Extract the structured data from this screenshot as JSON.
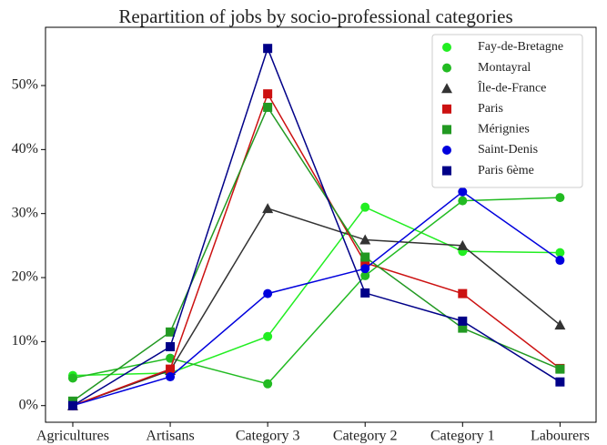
{
  "chart_data": {
    "type": "line",
    "title": "Repartition of jobs by socio-professional categories",
    "categories": [
      "Agricultures",
      "Artisans",
      "Category 3",
      "Category 2",
      "Category 1",
      "Labourers"
    ],
    "series": [
      {
        "name": "Fay-de-Bretagne",
        "color": "#22ee22",
        "marker": "circle",
        "values": [
          4.7,
          5.1,
          10.8,
          31.0,
          24.1,
          23.9
        ]
      },
      {
        "name": "Montayral",
        "color": "#22bb22",
        "marker": "circle",
        "values": [
          4.3,
          7.4,
          3.4,
          20.3,
          32.0,
          32.5
        ]
      },
      {
        "name": "Île-de-France",
        "color": "#333333",
        "marker": "triangle",
        "values": [
          0,
          5.5,
          30.8,
          25.9,
          25.0,
          12.6
        ]
      },
      {
        "name": "Paris",
        "color": "#cc1111",
        "marker": "square",
        "values": [
          0,
          5.7,
          48.7,
          22.3,
          17.5,
          5.8
        ]
      },
      {
        "name": "Mérignies",
        "color": "#229922",
        "marker": "square",
        "values": [
          0.7,
          11.5,
          46.6,
          23.2,
          12.1,
          5.7
        ]
      },
      {
        "name": "Saint-Denis",
        "color": "#0000dd",
        "marker": "circle",
        "values": [
          0,
          4.5,
          17.5,
          21.4,
          33.4,
          22.7
        ]
      },
      {
        "name": "Paris 6ème",
        "color": "#000088",
        "marker": "square",
        "values": [
          0,
          9.2,
          55.8,
          17.6,
          13.2,
          3.7
        ]
      }
    ],
    "xlim": [
      -0.28,
      5.37
    ],
    "ylim": [
      -2.6,
      59.1
    ],
    "yticks": [
      {
        "value": 0,
        "label": "0%"
      },
      {
        "value": 10,
        "label": "10%"
      },
      {
        "value": 20,
        "label": "20%"
      },
      {
        "value": 30,
        "label": "30%"
      },
      {
        "value": 40,
        "label": "40%"
      },
      {
        "value": 50,
        "label": "50%"
      }
    ],
    "grid": false,
    "legend": "upper right"
  }
}
